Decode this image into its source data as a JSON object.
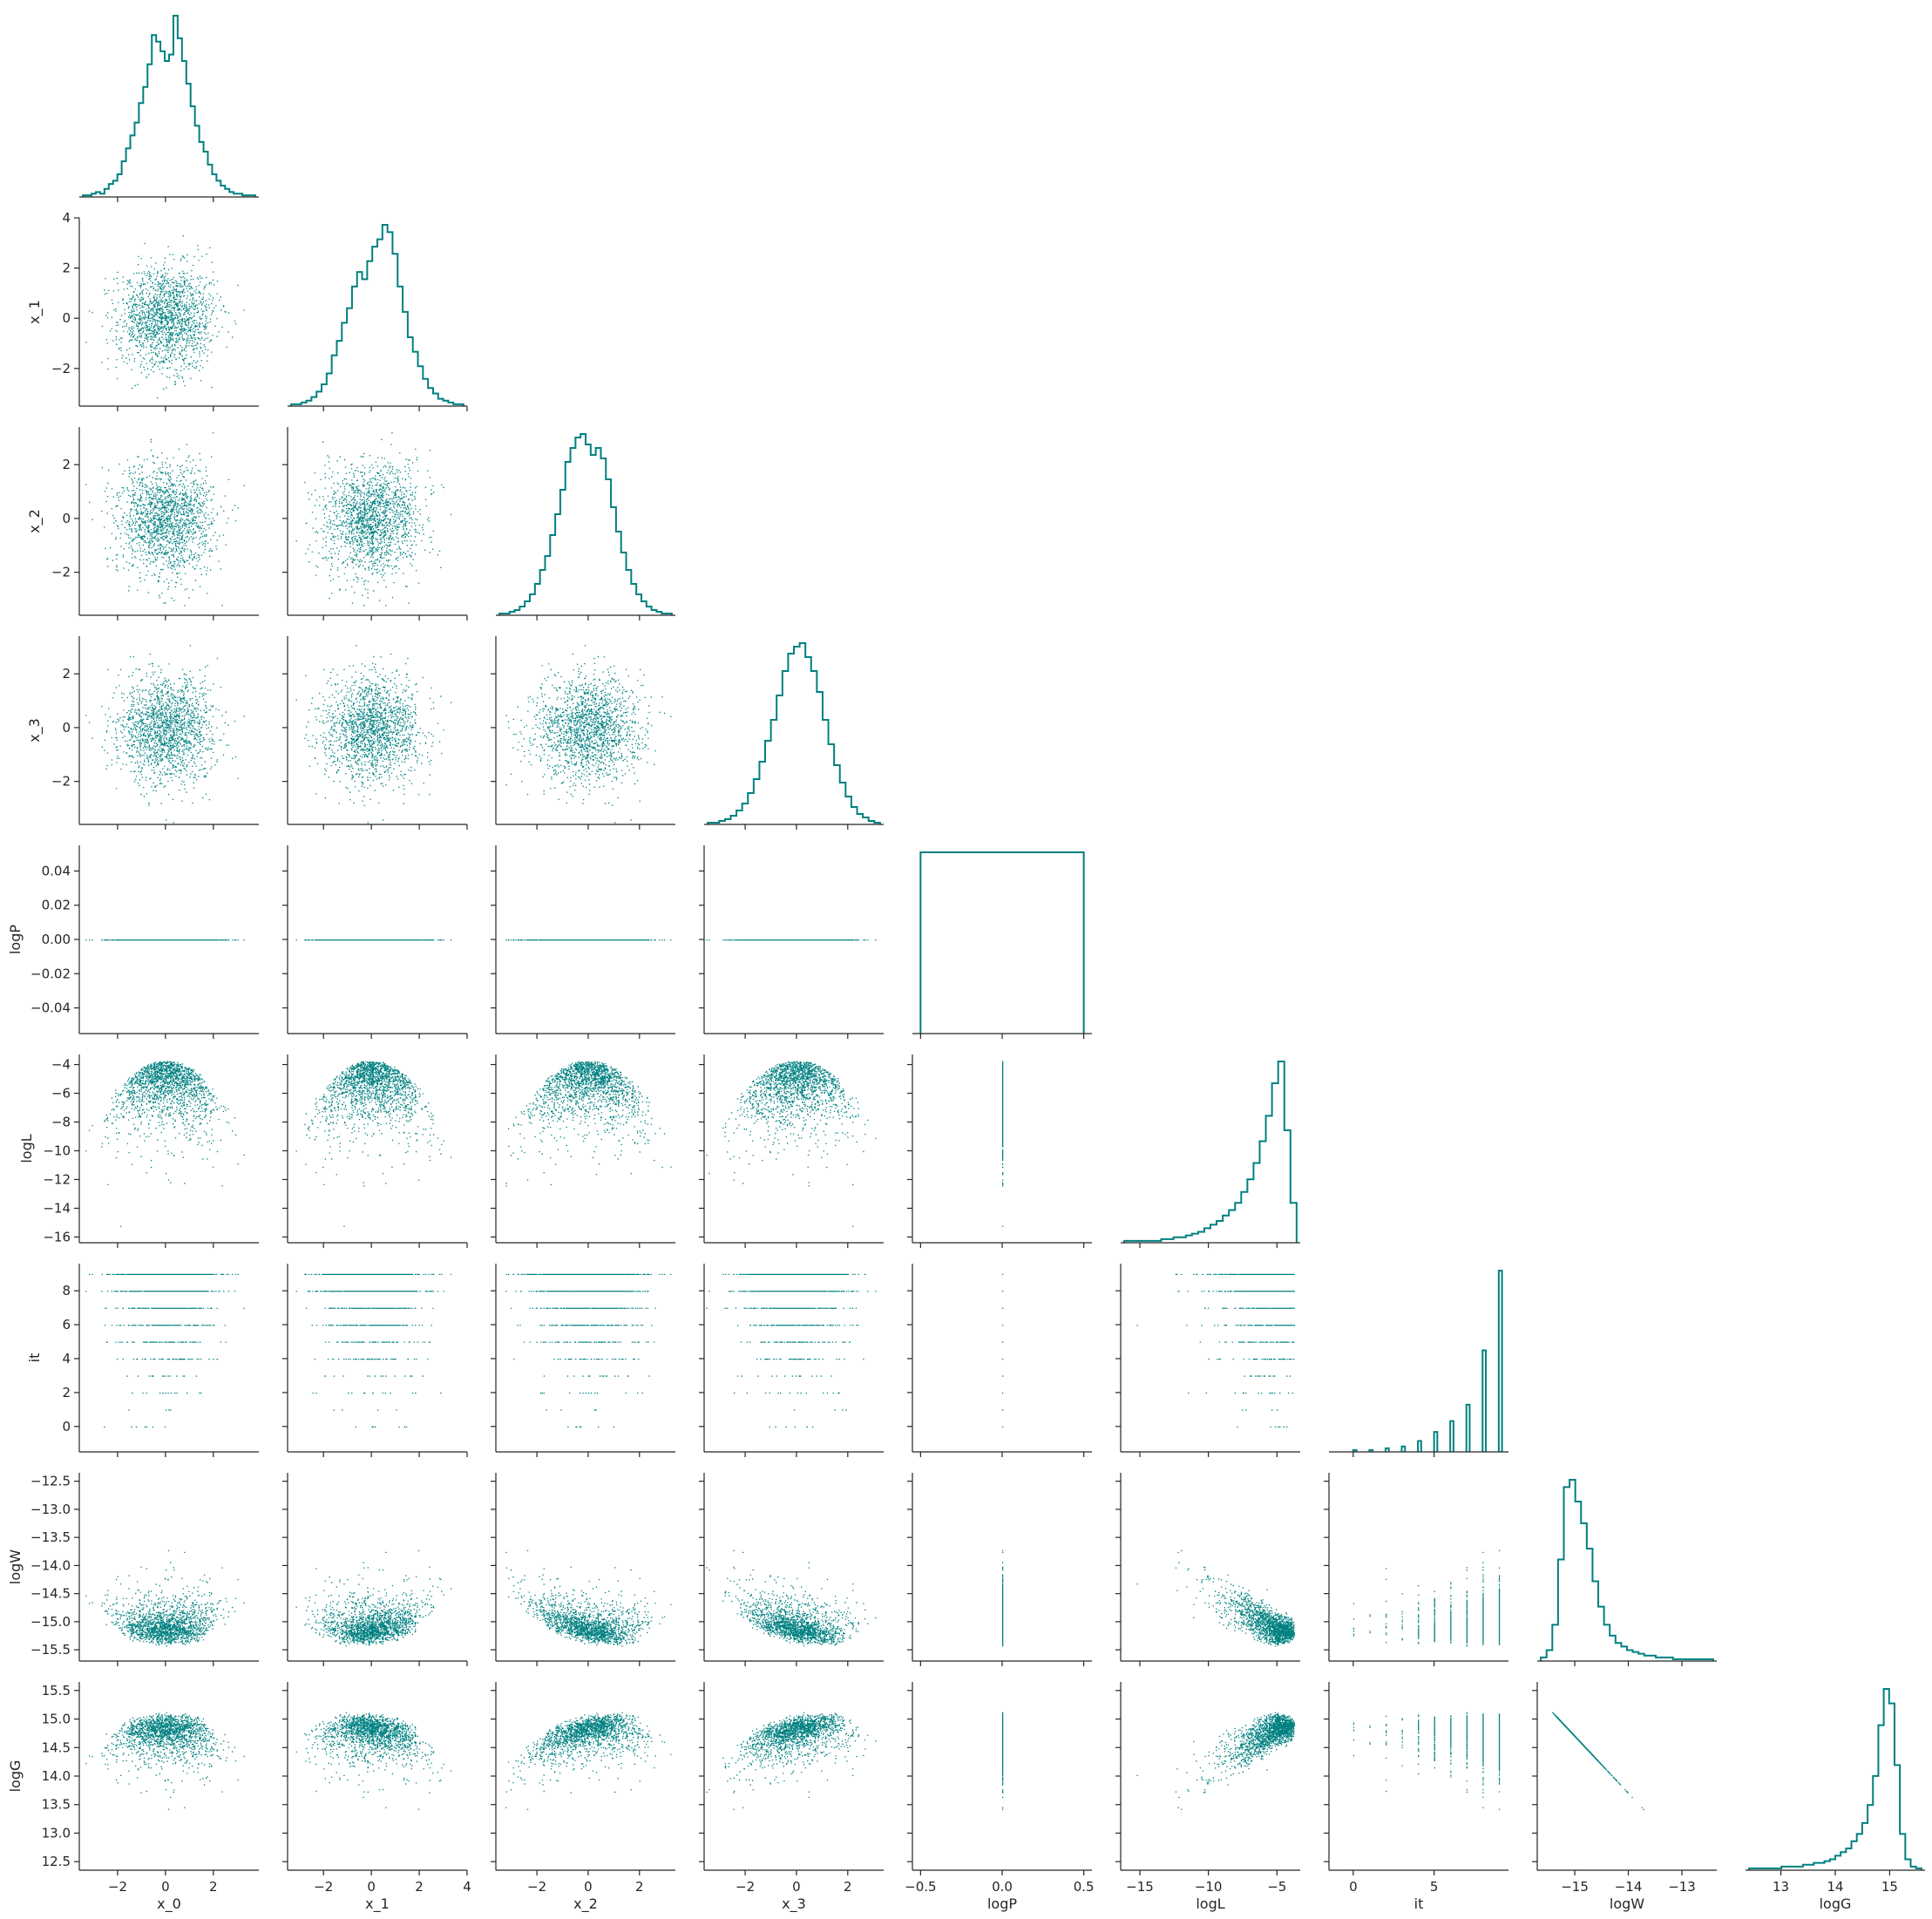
{
  "chart_data": {
    "type": "scatter",
    "layout": "corner-pairplot",
    "color": "#008080",
    "variables": [
      {
        "name": "x_0",
        "label": "x_0",
        "range": [
          -3.6,
          3.9
        ],
        "ticks": [
          -2,
          0,
          2
        ],
        "tick_labels": [
          "−2",
          "0",
          "2"
        ]
      },
      {
        "name": "x_1",
        "label": "x_1",
        "range": [
          -3.5,
          4.0
        ],
        "ticks": [
          -2,
          0,
          2,
          4
        ],
        "tick_labels": [
          "−2",
          "0",
          "2",
          "4"
        ]
      },
      {
        "name": "x_2",
        "label": "x_2",
        "range": [
          -3.6,
          3.4
        ],
        "ticks": [
          -2,
          0,
          2
        ],
        "tick_labels": [
          "−2",
          "0",
          "2"
        ]
      },
      {
        "name": "x_3",
        "label": "x_3",
        "range": [
          -3.6,
          3.4
        ],
        "ticks": [
          -2,
          0,
          2
        ],
        "tick_labels": [
          "−2",
          "0",
          "2"
        ]
      },
      {
        "name": "logP",
        "label": "logP",
        "range": [
          -0.55,
          0.55
        ],
        "ticks": [
          -0.5,
          0.0,
          0.5
        ],
        "tick_labels": [
          "−0.5",
          "0.0",
          "0.5"
        ],
        "y_range": [
          -0.055,
          0.055
        ],
        "y_ticks": [
          -0.04,
          -0.02,
          0.0,
          0.02,
          0.04
        ],
        "y_tick_labels": [
          "−0.04",
          "−0.02",
          "0.00",
          "0.02",
          "0.04"
        ]
      },
      {
        "name": "logL",
        "label": "logL",
        "range": [
          -16.4,
          -3.3
        ],
        "ticks": [
          -15,
          -10,
          -5
        ],
        "tick_labels": [
          "−15",
          "−10",
          "−5"
        ],
        "y_ticks": [
          -16,
          -14,
          -12,
          -10,
          -8,
          -6,
          -4
        ],
        "y_tick_labels": [
          "−16",
          "−14",
          "−12",
          "−10",
          "−8",
          "−6",
          "−4"
        ]
      },
      {
        "name": "it",
        "label": "it",
        "range": [
          -1.5,
          9.6
        ],
        "ticks": [
          0,
          5
        ],
        "tick_labels": [
          "0",
          "5"
        ],
        "y_ticks": [
          0,
          2,
          4,
          6,
          8
        ],
        "y_tick_labels": [
          "0",
          "2",
          "4",
          "6",
          "8"
        ]
      },
      {
        "name": "logW",
        "label": "logW",
        "range": [
          -15.7,
          -12.35
        ],
        "ticks": [
          -15,
          -14,
          -13
        ],
        "tick_labels": [
          "−15",
          "−14",
          "−13"
        ],
        "y_ticks": [
          -15.5,
          -15.0,
          -14.5,
          -14.0,
          -13.5,
          -13.0,
          -12.5
        ],
        "y_tick_labels": [
          "−15.5",
          "−15.0",
          "−14.5",
          "−14.0",
          "−13.5",
          "−13.0",
          "−12.5"
        ]
      },
      {
        "name": "logG",
        "label": "logG",
        "range": [
          12.35,
          15.65
        ],
        "ticks": [
          13,
          14,
          15
        ],
        "tick_labels": [
          "13",
          "14",
          "15"
        ],
        "y_ticks": [
          12.5,
          13.0,
          13.5,
          14.0,
          14.5,
          15.0,
          15.5
        ],
        "y_tick_labels": [
          "12.5",
          "13.0",
          "13.5",
          "14.0",
          "14.5",
          "15.0",
          "15.5"
        ]
      }
    ],
    "default_y_ticks": [
      -2,
      0,
      2
    ],
    "default_y_tick_labels": [
      "−2",
      "0",
      "2"
    ],
    "x1_y_ticks": [
      -2,
      0,
      2,
      4
    ],
    "x1_y_tick_labels": [
      "−2",
      "0",
      "2",
      "4"
    ],
    "histograms": {
      "x_0": [
        1,
        1,
        2,
        3,
        2,
        5,
        8,
        10,
        14,
        22,
        30,
        38,
        46,
        58,
        68,
        82,
        100,
        96,
        90,
        84,
        88,
        112,
        98,
        84,
        70,
        56,
        44,
        34,
        28,
        20,
        14,
        10,
        7,
        5,
        3,
        2,
        2,
        1,
        1,
        1
      ],
      "x_1": [
        1,
        1,
        2,
        3,
        5,
        8,
        12,
        18,
        28,
        36,
        46,
        54,
        66,
        74,
        70,
        80,
        88,
        92,
        100,
        96,
        84,
        66,
        52,
        38,
        30,
        22,
        15,
        10,
        7,
        4,
        3,
        2,
        1,
        1
      ],
      "x_2": [
        1,
        1,
        2,
        3,
        5,
        8,
        12,
        18,
        26,
        34,
        46,
        58,
        72,
        88,
        96,
        102,
        104,
        98,
        92,
        96,
        90,
        78,
        62,
        48,
        36,
        26,
        18,
        12,
        8,
        5,
        3,
        2,
        1,
        1
      ],
      "x_3": [
        1,
        1,
        2,
        3,
        5,
        8,
        12,
        18,
        26,
        36,
        48,
        60,
        74,
        88,
        98,
        102,
        104,
        96,
        88,
        76,
        60,
        46,
        34,
        24,
        16,
        10,
        6,
        4,
        2,
        1
      ],
      "logP": {
        "bins": [
          [
            -0.5,
            0.5,
            1.0
          ]
        ]
      },
      "logL": [
        1,
        1,
        1,
        1,
        1,
        1,
        2,
        2,
        3,
        3,
        4,
        5,
        6,
        8,
        10,
        12,
        15,
        18,
        22,
        28,
        35,
        44,
        56,
        70,
        88,
        100,
        62,
        22
      ],
      "it": {
        "bins": [
          [
            0,
            0.2,
            0.01
          ],
          [
            1,
            1.2,
            0.01
          ],
          [
            2,
            2.2,
            0.02
          ],
          [
            3,
            3.2,
            0.03
          ],
          [
            4,
            4.2,
            0.06
          ],
          [
            5,
            5.2,
            0.11
          ],
          [
            6,
            6.2,
            0.17
          ],
          [
            7,
            7.2,
            0.26
          ],
          [
            8,
            8.2,
            0.56
          ],
          [
            9,
            9.2,
            1.0
          ]
        ]
      },
      "logW": [
        2,
        6,
        20,
        56,
        96,
        100,
        88,
        76,
        62,
        44,
        30,
        20,
        14,
        10,
        8,
        6,
        5,
        4,
        3,
        3,
        2,
        2,
        2,
        1,
        1,
        1,
        1,
        1,
        1,
        1
      ],
      "logG": [
        1,
        1,
        1,
        1,
        1,
        1,
        2,
        2,
        2,
        2,
        3,
        3,
        4,
        4,
        5,
        6,
        8,
        10,
        12,
        16,
        20,
        26,
        36,
        52,
        80,
        100,
        92,
        58,
        20,
        6,
        2,
        1
      ]
    }
  }
}
